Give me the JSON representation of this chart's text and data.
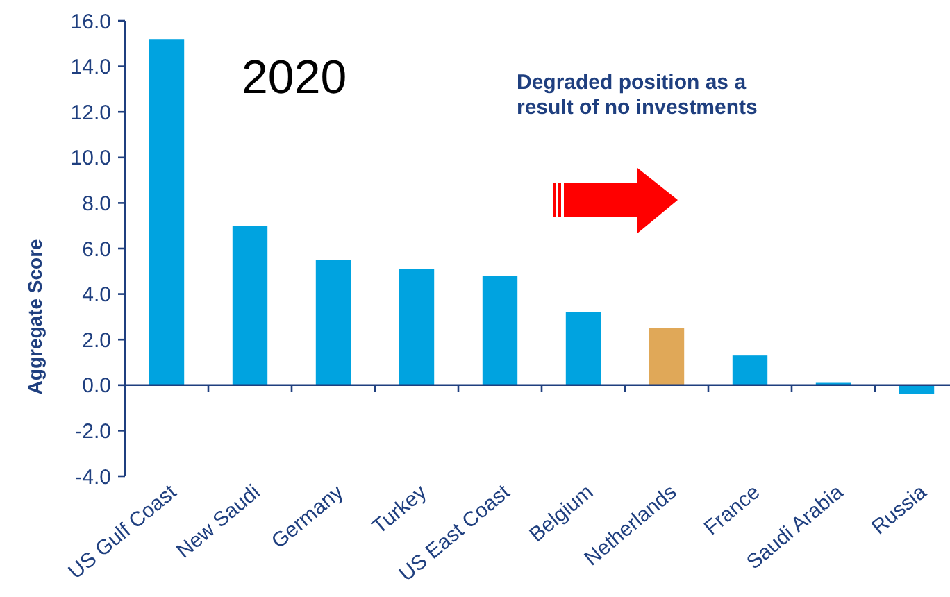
{
  "chart_data": {
    "type": "bar",
    "ylabel": "Aggregate Score",
    "categories": [
      "US Gulf Coast",
      "New Saudi",
      "Germany",
      "Turkey",
      "US East Coast",
      "Belgium",
      "Netherlands",
      "France",
      "Saudi Arabia",
      "Russia"
    ],
    "values": [
      15.2,
      7.0,
      5.5,
      5.1,
      4.8,
      3.2,
      2.5,
      1.3,
      0.1,
      -0.4
    ],
    "colors": [
      "#00a3e0",
      "#00a3e0",
      "#00a3e0",
      "#00a3e0",
      "#00a3e0",
      "#00a3e0",
      "#e0a858",
      "#00a3e0",
      "#00a3e0",
      "#00a3e0"
    ],
    "ylim": [
      -4,
      16
    ],
    "yticks": [
      {
        "value": -4,
        "label": "-4.0"
      },
      {
        "value": -2,
        "label": "-2.0"
      },
      {
        "value": 0,
        "label": "0.0"
      },
      {
        "value": 2,
        "label": "2.0"
      },
      {
        "value": 4,
        "label": "4.0"
      },
      {
        "value": 6,
        "label": "6.0"
      },
      {
        "value": 8,
        "label": "8.0"
      },
      {
        "value": 10,
        "label": "10.0"
      },
      {
        "value": 12,
        "label": "12.0"
      },
      {
        "value": 14,
        "label": "14.0"
      },
      {
        "value": 16,
        "label": "16.0"
      }
    ],
    "grid": false,
    "ref_lines": [
      {
        "axis": "y",
        "value": 0,
        "color": "#1f3f7f"
      }
    ],
    "annotations": [
      "2020",
      "Degraded position as a\nresult of no investments"
    ]
  }
}
